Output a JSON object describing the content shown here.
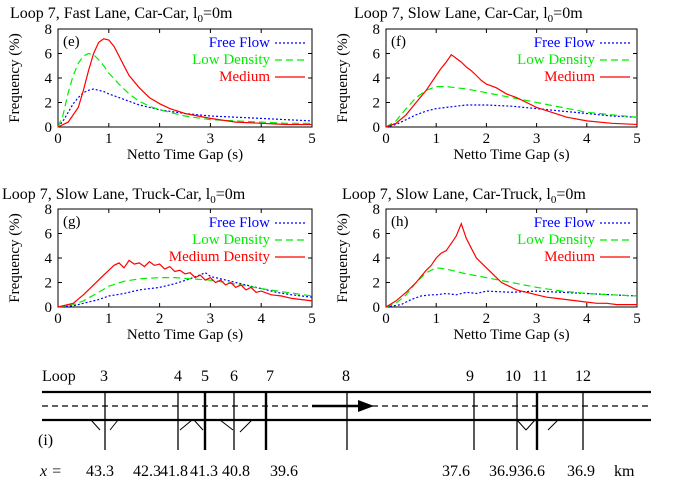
{
  "chart_data": [
    {
      "type": "line",
      "panel": "(e)",
      "title": "Loop 7, Fast Lane, Car-Car, l",
      "title_sub": "0",
      "title_tail": "=0m",
      "xlabel": "Netto Time Gap (s)",
      "ylabel": "Frequency (%)",
      "xlim": [
        0,
        5
      ],
      "ylim": [
        0,
        8
      ],
      "xticks": [
        "0",
        "1",
        "2",
        "3",
        "4",
        "5"
      ],
      "yticks": [
        "0",
        "2",
        "4",
        "6",
        "8"
      ],
      "legend_position": "top-right",
      "series": [
        {
          "name": "Free Flow",
          "color": "#0000ff",
          "style": "dotted",
          "x": [
            0,
            0.1,
            0.2,
            0.3,
            0.4,
            0.5,
            0.6,
            0.7,
            0.8,
            0.9,
            1.0,
            1.2,
            1.4,
            1.6,
            1.8,
            2.0,
            2.5,
            3.0,
            3.5,
            4.0,
            4.5,
            5.0
          ],
          "y": [
            0,
            0.5,
            1.2,
            1.9,
            2.4,
            2.8,
            3.0,
            3.1,
            3.0,
            2.9,
            2.7,
            2.4,
            2.1,
            1.8,
            1.6,
            1.4,
            1.1,
            0.9,
            0.8,
            0.7,
            0.6,
            0.5
          ]
        },
        {
          "name": "Low Density",
          "color": "#00ee00",
          "style": "dashed",
          "x": [
            0,
            0.1,
            0.2,
            0.3,
            0.4,
            0.5,
            0.6,
            0.7,
            0.8,
            0.9,
            1.0,
            1.2,
            1.4,
            1.6,
            1.8,
            2.0,
            2.5,
            3.0,
            3.5,
            4.0,
            4.5,
            5.0
          ],
          "y": [
            0,
            1.0,
            2.8,
            4.2,
            5.2,
            5.8,
            6.0,
            5.9,
            5.5,
            5.0,
            4.4,
            3.5,
            2.7,
            2.1,
            1.7,
            1.4,
            0.9,
            0.6,
            0.5,
            0.4,
            0.3,
            0.3
          ]
        },
        {
          "name": "Medium",
          "color": "#ff0000",
          "style": "solid",
          "x": [
            0,
            0.2,
            0.4,
            0.5,
            0.6,
            0.7,
            0.8,
            0.9,
            1.0,
            1.1,
            1.2,
            1.3,
            1.4,
            1.6,
            1.8,
            2.0,
            2.2,
            2.5,
            3.0,
            3.5,
            4.0,
            4.5,
            5.0
          ],
          "y": [
            0,
            0.4,
            1.6,
            3.0,
            4.6,
            6.0,
            6.9,
            7.2,
            7.1,
            6.6,
            5.8,
            5.0,
            4.2,
            3.2,
            2.4,
            1.9,
            1.5,
            1.1,
            0.7,
            0.4,
            0.3,
            0.2,
            0.2
          ]
        }
      ]
    },
    {
      "type": "line",
      "panel": "(f)",
      "title": "Loop 7, Slow Lane, Car-Car, l",
      "title_sub": "0",
      "title_tail": "=0m",
      "xlabel": "Netto Time Gap (s)",
      "ylabel": "Frequency (%)",
      "xlim": [
        0,
        5
      ],
      "ylim": [
        0,
        8
      ],
      "xticks": [
        "0",
        "1",
        "2",
        "3",
        "4",
        "5"
      ],
      "yticks": [
        "0",
        "2",
        "4",
        "6",
        "8"
      ],
      "legend_position": "top-right",
      "series": [
        {
          "name": "Free Flow",
          "color": "#0000ff",
          "style": "dotted",
          "x": [
            0,
            0.2,
            0.4,
            0.6,
            0.8,
            1.0,
            1.2,
            1.4,
            1.6,
            2.0,
            2.5,
            3.0,
            3.5,
            4.0,
            4.5,
            5.0
          ],
          "y": [
            0,
            0.2,
            0.6,
            1.0,
            1.3,
            1.5,
            1.6,
            1.7,
            1.8,
            1.8,
            1.7,
            1.5,
            1.3,
            1.1,
            0.9,
            0.8
          ]
        },
        {
          "name": "Low Density",
          "color": "#00ee00",
          "style": "dashed",
          "x": [
            0,
            0.2,
            0.4,
            0.6,
            0.8,
            1.0,
            1.2,
            1.4,
            1.6,
            2.0,
            2.5,
            3.0,
            3.5,
            4.0,
            4.5,
            5.0
          ],
          "y": [
            0,
            0.5,
            1.5,
            2.4,
            3.0,
            3.3,
            3.3,
            3.2,
            3.1,
            2.8,
            2.4,
            2.0,
            1.6,
            1.2,
            1.0,
            0.8
          ]
        },
        {
          "name": "Medium",
          "color": "#ff0000",
          "style": "solid",
          "x": [
            0,
            0.2,
            0.4,
            0.6,
            0.8,
            1.0,
            1.1,
            1.2,
            1.3,
            1.4,
            1.5,
            1.6,
            1.7,
            1.8,
            1.9,
            2.0,
            2.2,
            2.4,
            2.6,
            2.8,
            3.0,
            3.3,
            3.6,
            4.0,
            4.5,
            5.0
          ],
          "y": [
            0,
            0.3,
            1.0,
            2.0,
            3.0,
            4.2,
            4.8,
            5.3,
            5.9,
            5.6,
            5.3,
            4.9,
            4.6,
            4.2,
            3.8,
            3.5,
            3.2,
            2.7,
            2.4,
            2.0,
            1.6,
            1.2,
            0.8,
            0.5,
            0.3,
            0.2
          ]
        }
      ]
    },
    {
      "type": "line",
      "panel": "(g)",
      "title": "Loop 7, Slow Lane, Truck-Car, l",
      "title_sub": "0",
      "title_tail": "=0m",
      "xlabel": "Netto Time Gap (s)",
      "ylabel": "Frequency (%)",
      "xlim": [
        0,
        5
      ],
      "ylim": [
        0,
        8
      ],
      "xticks": [
        "0",
        "1",
        "2",
        "3",
        "4",
        "5"
      ],
      "yticks": [
        "0",
        "2",
        "4",
        "6",
        "8"
      ],
      "legend_position": "top-right",
      "series": [
        {
          "name": "Free Flow",
          "color": "#0000ff",
          "style": "dotted",
          "x": [
            0,
            0.3,
            0.5,
            0.8,
            1.0,
            1.3,
            1.6,
            2.0,
            2.3,
            2.6,
            2.9,
            3.0,
            3.2,
            3.5,
            3.8,
            4.0,
            4.3,
            4.6,
            5.0
          ],
          "y": [
            0,
            0.1,
            0.3,
            0.6,
            0.9,
            1.1,
            1.4,
            1.6,
            1.9,
            2.3,
            2.8,
            2.5,
            2.3,
            2.0,
            1.7,
            1.5,
            1.2,
            1.0,
            0.8
          ]
        },
        {
          "name": "Low Density",
          "color": "#00ee00",
          "style": "dashed",
          "x": [
            0,
            0.3,
            0.5,
            0.8,
            1.0,
            1.3,
            1.6,
            2.0,
            2.3,
            2.6,
            3.0,
            3.3,
            3.6,
            4.0,
            4.5,
            5.0
          ],
          "y": [
            0,
            0.2,
            0.5,
            1.2,
            1.7,
            2.1,
            2.3,
            2.4,
            2.4,
            2.3,
            2.2,
            2.0,
            1.8,
            1.5,
            1.2,
            0.9
          ]
        },
        {
          "name": "Medium Density",
          "color": "#ff0000",
          "style": "solid",
          "x": [
            0,
            0.3,
            0.5,
            0.7,
            0.9,
            1.0,
            1.1,
            1.2,
            1.3,
            1.4,
            1.5,
            1.6,
            1.7,
            1.8,
            1.9,
            2.0,
            2.1,
            2.2,
            2.3,
            2.4,
            2.5,
            2.6,
            2.7,
            2.8,
            2.9,
            3.0,
            3.1,
            3.2,
            3.3,
            3.4,
            3.5,
            3.6,
            3.7,
            3.8,
            3.9,
            4.0,
            4.2,
            4.4,
            4.6,
            4.8,
            5.0
          ],
          "y": [
            0,
            0.3,
            1.0,
            1.8,
            2.6,
            3.0,
            3.4,
            3.6,
            3.2,
            3.8,
            3.5,
            3.6,
            3.3,
            3.7,
            3.4,
            3.5,
            3.1,
            3.3,
            2.9,
            3.0,
            2.7,
            2.8,
            2.4,
            2.6,
            2.2,
            2.4,
            2.0,
            2.2,
            1.8,
            2.0,
            1.6,
            1.8,
            1.4,
            1.6,
            1.2,
            1.3,
            1.0,
            0.9,
            0.7,
            0.6,
            0.5
          ]
        }
      ]
    },
    {
      "type": "line",
      "panel": "(h)",
      "title": "Loop 7, Slow Lane, Car-Truck, l",
      "title_sub": "0",
      "title_tail": "=0m",
      "xlabel": "Netto Time Gap (s)",
      "ylabel": "Frequency (%)",
      "xlim": [
        0,
        5
      ],
      "ylim": [
        0,
        8
      ],
      "xticks": [
        "0",
        "1",
        "2",
        "3",
        "4",
        "5"
      ],
      "yticks": [
        "0",
        "2",
        "4",
        "6",
        "8"
      ],
      "legend_position": "top-right",
      "series": [
        {
          "name": "Free Flow",
          "color": "#0000ff",
          "style": "dotted",
          "x": [
            0,
            0.3,
            0.5,
            0.7,
            0.9,
            1.0,
            1.2,
            1.4,
            1.6,
            1.8,
            2.0,
            2.5,
            3.0,
            3.5,
            4.0,
            4.5,
            5.0
          ],
          "y": [
            0,
            0.2,
            0.6,
            0.9,
            1.0,
            1.0,
            1.1,
            1.0,
            1.2,
            1.1,
            1.3,
            1.2,
            1.3,
            1.2,
            1.1,
            1.0,
            0.9
          ]
        },
        {
          "name": "Low Density",
          "color": "#00ee00",
          "style": "dashed",
          "x": [
            0,
            0.2,
            0.4,
            0.6,
            0.8,
            1.0,
            1.2,
            1.4,
            1.6,
            2.0,
            2.5,
            3.0,
            3.5,
            4.0,
            4.5,
            5.0
          ],
          "y": [
            0,
            0.3,
            1.0,
            2.0,
            2.8,
            3.2,
            3.1,
            2.9,
            2.7,
            2.4,
            2.0,
            1.6,
            1.3,
            1.1,
            1.0,
            0.9
          ]
        },
        {
          "name": "Medium",
          "color": "#ff0000",
          "style": "solid",
          "x": [
            0,
            0.2,
            0.4,
            0.6,
            0.8,
            0.9,
            1.0,
            1.1,
            1.2,
            1.3,
            1.4,
            1.5,
            1.6,
            1.7,
            1.8,
            1.9,
            2.0,
            2.1,
            2.2,
            2.3,
            2.4,
            2.5,
            2.6,
            2.8,
            3.0,
            3.2,
            3.4,
            3.6,
            3.8,
            4.0,
            4.2,
            4.4,
            4.6,
            4.8,
            5.0
          ],
          "y": [
            0,
            0.5,
            1.2,
            2.0,
            3.0,
            3.4,
            4.0,
            4.4,
            4.6,
            5.2,
            5.8,
            6.8,
            5.6,
            4.8,
            4.0,
            3.6,
            3.2,
            2.8,
            2.4,
            2.0,
            1.8,
            1.6,
            1.4,
            1.2,
            1.0,
            0.8,
            0.7,
            0.6,
            0.5,
            0.4,
            0.3,
            0.3,
            0.2,
            0.2,
            0.2
          ]
        }
      ]
    }
  ],
  "road_diagram": {
    "panel_label": "(i)",
    "loop_label": "Loop",
    "x_label": "x =",
    "unit": "km",
    "loops": [
      {
        "id": "3",
        "km": "43.3"
      },
      {
        "id": "4",
        "km": "42.3"
      },
      {
        "id": "5",
        "km": "41.8"
      },
      {
        "id": "6",
        "km": "41.3"
      },
      {
        "id": "7",
        "km": "40.8"
      },
      {
        "id": "8",
        "km": "39.6"
      },
      {
        "id": "9",
        "km": "37.6"
      },
      {
        "id": "10",
        "km": "36.9"
      },
      {
        "id": "11",
        "km": "36.6"
      },
      {
        "id": "12",
        "km": "36.9"
      }
    ]
  }
}
